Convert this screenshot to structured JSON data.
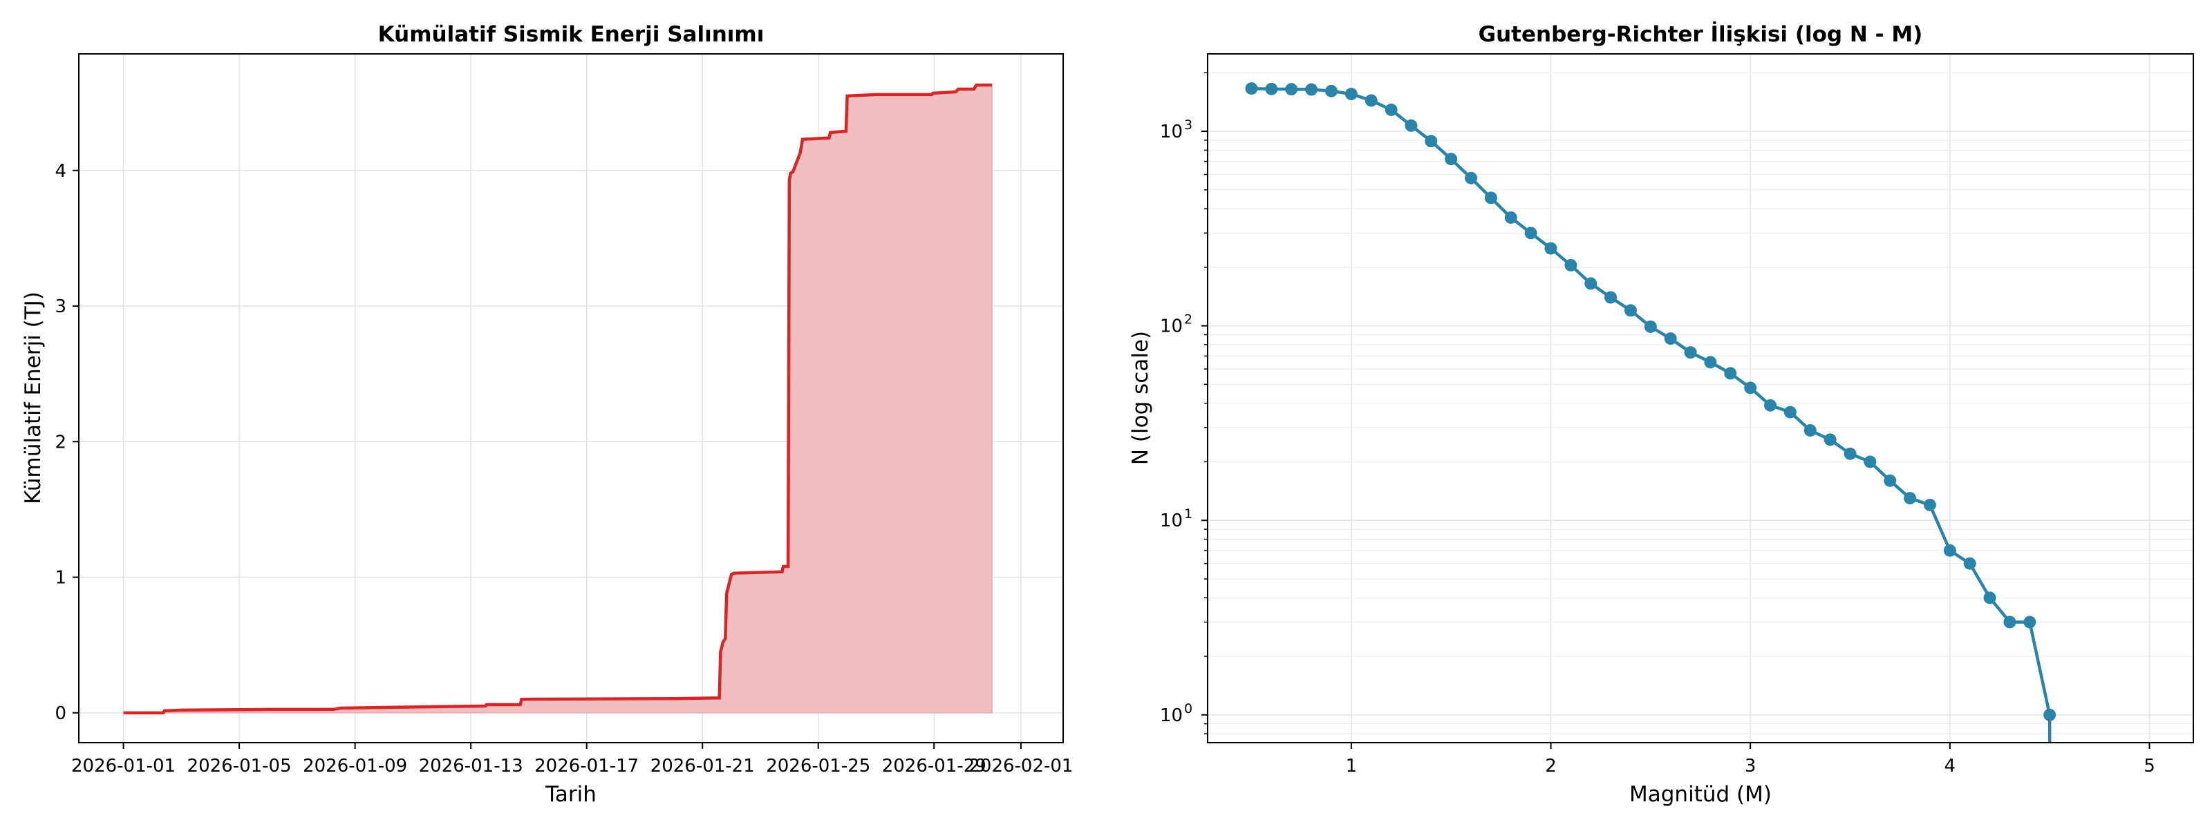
{
  "chart_data": [
    {
      "type": "area",
      "title": "Kümülatif Sismik Enerji Salınımı",
      "xlabel": "Tarih",
      "ylabel": "Kümülatif Enerji (TJ)",
      "x_tick_labels": [
        "2026-01-01",
        "2026-01-05",
        "2026-01-09",
        "2026-01-13",
        "2026-01-17",
        "2026-01-21",
        "2026-01-25",
        "2026-01-29",
        "2026-02-01"
      ],
      "y_tick_labels": [
        "0",
        "1",
        "2",
        "3",
        "4"
      ],
      "xlim": [
        "2025-12-30T11:00",
        "2026-02-02T11:00"
      ],
      "ylim": [
        -0.22,
        4.86
      ],
      "grid": true,
      "color": "#d62728",
      "fill_color": "#f1bebf",
      "x": [
        "2026-01-01T00:00",
        "2026-01-02T09:00",
        "2026-01-02T10:00",
        "2026-01-03T00:00",
        "2026-01-06T00:00",
        "2026-01-08T06:00",
        "2026-01-08T12:00",
        "2026-01-10T00:00",
        "2026-01-13T12:00",
        "2026-01-13T13:00",
        "2026-01-14T17:00",
        "2026-01-14T18:00",
        "2026-01-20T00:00",
        "2026-01-21T14:00",
        "2026-01-21T15:00",
        "2026-01-21T17:00",
        "2026-01-21T19:00",
        "2026-01-21T20:00",
        "2026-01-22T00:00",
        "2026-01-22T02:00",
        "2026-01-23T18:00",
        "2026-01-23T19:00",
        "2026-01-23T23:00",
        "2026-01-24T00:00",
        "2026-01-24T01:00",
        "2026-01-24T03:00",
        "2026-01-24T09:00",
        "2026-01-24T11:00",
        "2026-01-25T09:00",
        "2026-01-25T10:00",
        "2026-01-25T23:00",
        "2026-01-26T00:00",
        "2026-01-27T00:00",
        "2026-01-28T22:00",
        "2026-01-28T23:00",
        "2026-01-29T18:00",
        "2026-01-29T20:00",
        "2026-01-30T09:00",
        "2026-01-30T11:00",
        "2026-01-31T00:00"
      ],
      "y": [
        0.0,
        0.0,
        0.015,
        0.02,
        0.025,
        0.025,
        0.035,
        0.04,
        0.05,
        0.06,
        0.06,
        0.1,
        0.105,
        0.11,
        0.45,
        0.52,
        0.55,
        0.88,
        1.02,
        1.03,
        1.04,
        1.08,
        1.08,
        3.93,
        3.98,
        3.99,
        4.13,
        4.23,
        4.24,
        4.28,
        4.29,
        4.55,
        4.56,
        4.56,
        4.57,
        4.58,
        4.6,
        4.6,
        4.63,
        4.63
      ]
    },
    {
      "type": "line",
      "title": "Gutenberg-Richter İlişkisi (log N - M)",
      "xlabel": "Magnitüd (M)",
      "ylabel": "N (log scale)",
      "y_scale": "log",
      "x_tick_labels": [
        "1",
        "2",
        "3",
        "4",
        "5"
      ],
      "y_tick_base": "10",
      "y_tick_exponents": [
        "0",
        "1",
        "2",
        "3"
      ],
      "xlim": [
        0.28,
        5.22
      ],
      "ylim": [
        0.72,
        2500
      ],
      "grid": true,
      "color": "#2a83a8",
      "x": [
        0.5,
        0.6,
        0.7,
        0.8,
        0.9,
        1.0,
        1.1,
        1.2,
        1.3,
        1.4,
        1.5,
        1.6,
        1.7,
        1.8,
        1.9,
        2.0,
        2.1,
        2.2,
        2.3,
        2.4,
        2.5,
        2.6,
        2.7,
        2.8,
        2.9,
        3.0,
        3.1,
        3.2,
        3.3,
        3.4,
        3.5,
        3.6,
        3.7,
        3.8,
        3.9,
        4.0,
        4.1,
        4.2,
        4.3,
        4.4,
        4.5
      ],
      "y": [
        1660,
        1650,
        1645,
        1640,
        1610,
        1555,
        1440,
        1290,
        1070,
        890,
        720,
        575,
        455,
        360,
        300,
        250,
        205,
        165,
        140,
        120,
        99,
        86,
        73,
        65,
        57,
        48,
        39,
        36,
        29,
        26,
        22,
        20,
        16,
        13,
        12,
        7,
        6,
        4,
        3,
        3,
        1
      ]
    }
  ]
}
